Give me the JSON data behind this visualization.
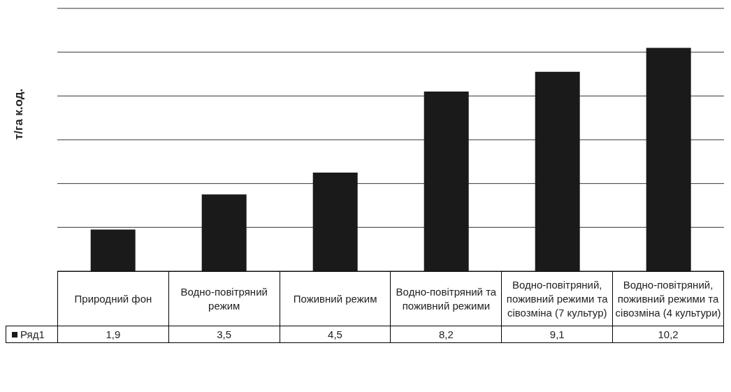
{
  "chart_data": {
    "type": "bar",
    "ylabel": "т/га к.од.",
    "categories": [
      "Природний фон",
      "Водно-повітряний режим",
      "Поживний режим",
      "Водно-повітряний та поживний режими",
      "Водно-повітряний, поживний режими та сівозміна (7 культур)",
      "Водно-повітряний, поживний режими та сівозміна (4 культури)"
    ],
    "series": [
      {
        "name": "Ряд1",
        "color": "#1a1a1a",
        "values": [
          1.9,
          3.5,
          4.5,
          8.2,
          9.1,
          10.2
        ],
        "value_labels": [
          "1,9",
          "3,5",
          "4,5",
          "8,2",
          "9,1",
          "10,2"
        ]
      }
    ],
    "ylim": [
      0,
      12
    ],
    "yticks": [
      {
        "value": 0,
        "label": null
      },
      {
        "value": 2,
        "label": null
      },
      {
        "value": 4,
        "label": null
      },
      {
        "value": 6,
        "label": null
      },
      {
        "value": 8,
        "label": null
      },
      {
        "value": 10,
        "label": null
      },
      {
        "value": 12,
        "label": null
      }
    ],
    "grid": "y",
    "legend": "bottom left"
  }
}
